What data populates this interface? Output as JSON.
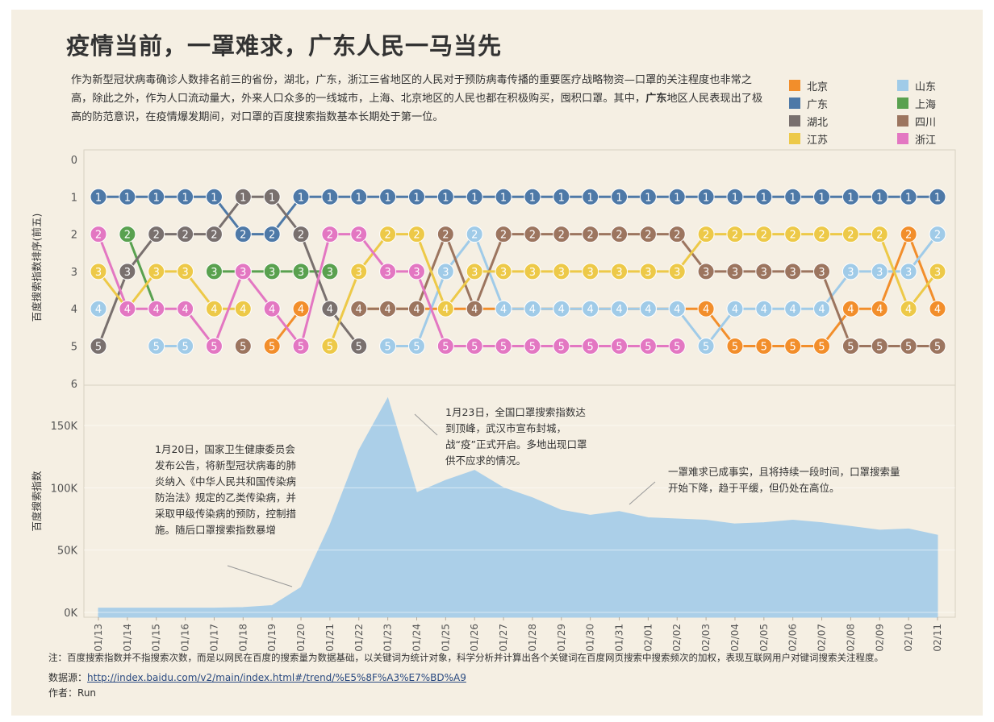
{
  "title": "疫情当前，一罩难求，广东人民一马当先",
  "intro": {
    "part1": "作为新型冠状病毒确诊人数排名前三的省份，湖北，广东，浙江三省地区的人民对于预防病毒传播的重要医疗战略物资—口罩的关注程度也非常之高，除此之外，作为人口流动量大，外来人口众多的一线城市，上海、北京地区的人民也都在积极购买，囤积口罩。其中，",
    "bold": "广东",
    "part2": "地区人民表现出了极高的防范意识，在疫情爆发期间，对口罩的百度搜索指数基本长期处于第一位。"
  },
  "legend": [
    {
      "name": "北京",
      "color": "#f28e2b"
    },
    {
      "name": "山东",
      "color": "#a0cbe8"
    },
    {
      "name": "广东",
      "color": "#4e79a7"
    },
    {
      "name": "上海",
      "color": "#59a14f"
    },
    {
      "name": "湖北",
      "color": "#79706e"
    },
    {
      "name": "四川",
      "color": "#9c755f"
    },
    {
      "name": "江苏",
      "color": "#edc948"
    },
    {
      "name": "浙江",
      "color": "#e377c2"
    }
  ],
  "chart_data": [
    {
      "type": "line",
      "subtype": "bump",
      "ylabel": "百度搜索指数排序(前五)",
      "ylim": [
        0,
        6
      ],
      "yticks": [
        "0",
        "1",
        "2",
        "3",
        "4",
        "5",
        "6"
      ],
      "x": [
        "01/13",
        "01/14",
        "01/15",
        "01/16",
        "01/17",
        "01/18",
        "01/19",
        "01/20",
        "01/21",
        "01/22",
        "01/23",
        "01/24",
        "01/25",
        "01/26",
        "01/27",
        "01/28",
        "01/29",
        "01/30",
        "01/31",
        "02/01",
        "02/02",
        "02/03",
        "02/04",
        "02/05",
        "02/06",
        "02/07",
        "02/08",
        "02/09",
        "02/10",
        "02/11"
      ],
      "series": [
        {
          "name": "北京",
          "color": "#f28e2b",
          "values": [
            null,
            null,
            null,
            null,
            5,
            null,
            5,
            4,
            null,
            4,
            4,
            4,
            4,
            4,
            4,
            4,
            4,
            4,
            4,
            4,
            4,
            4,
            5,
            5,
            5,
            5,
            4,
            4,
            2,
            4
          ]
        },
        {
          "name": "山东",
          "color": "#a0cbe8",
          "values": [
            4,
            null,
            5,
            5,
            null,
            null,
            null,
            null,
            5,
            null,
            5,
            5,
            3,
            2,
            4,
            4,
            4,
            4,
            4,
            4,
            4,
            5,
            4,
            4,
            4,
            4,
            3,
            3,
            3,
            2
          ]
        },
        {
          "name": "广东",
          "color": "#4e79a7",
          "values": [
            1,
            1,
            1,
            1,
            1,
            2,
            2,
            1,
            1,
            1,
            1,
            1,
            1,
            1,
            1,
            1,
            1,
            1,
            1,
            1,
            1,
            1,
            1,
            1,
            1,
            1,
            1,
            1,
            1,
            1
          ]
        },
        {
          "name": "上海",
          "color": "#59a14f",
          "values": [
            null,
            2,
            4,
            null,
            3,
            3,
            3,
            3,
            3,
            null,
            null,
            null,
            null,
            null,
            null,
            null,
            null,
            null,
            null,
            null,
            null,
            null,
            null,
            null,
            null,
            null,
            null,
            null,
            null,
            null
          ]
        },
        {
          "name": "湖北",
          "color": "#79706e",
          "values": [
            5,
            3,
            2,
            2,
            2,
            1,
            1,
            2,
            4,
            5,
            null,
            null,
            null,
            null,
            null,
            null,
            null,
            null,
            null,
            null,
            null,
            null,
            null,
            null,
            null,
            null,
            null,
            null,
            null,
            null
          ]
        },
        {
          "name": "四川",
          "color": "#9c755f",
          "values": [
            null,
            null,
            null,
            null,
            null,
            5,
            null,
            null,
            null,
            4,
            4,
            4,
            2,
            4,
            2,
            2,
            2,
            2,
            2,
            2,
            2,
            3,
            3,
            3,
            3,
            3,
            5,
            5,
            5,
            5
          ]
        },
        {
          "name": "江苏",
          "color": "#edc948",
          "values": [
            3,
            4,
            3,
            3,
            4,
            4,
            null,
            null,
            5,
            3,
            2,
            2,
            4,
            3,
            3,
            3,
            3,
            3,
            3,
            3,
            3,
            2,
            2,
            2,
            2,
            2,
            2,
            2,
            4,
            3
          ]
        },
        {
          "name": "浙江",
          "color": "#e377c2",
          "values": [
            2,
            4,
            4,
            4,
            5,
            3,
            4,
            5,
            2,
            2,
            3,
            3,
            5,
            5,
            5,
            5,
            5,
            5,
            5,
            5,
            5,
            null,
            null,
            null,
            null,
            null,
            null,
            null,
            null,
            null
          ]
        }
      ]
    },
    {
      "type": "area",
      "ylabel": "百度搜索指数",
      "yticks": [
        "0K",
        "50K",
        "100K",
        "150K"
      ],
      "ylim": [
        0,
        180000
      ],
      "x": [
        "01/13",
        "01/14",
        "01/15",
        "01/16",
        "01/17",
        "01/18",
        "01/19",
        "01/20",
        "01/21",
        "01/22",
        "01/23",
        "01/24",
        "01/25",
        "01/26",
        "01/27",
        "01/28",
        "01/29",
        "01/30",
        "01/31",
        "02/01",
        "02/02",
        "02/03",
        "02/04",
        "02/05",
        "02/06",
        "02/07",
        "02/08",
        "02/09",
        "02/10",
        "02/11"
      ],
      "values": [
        3500,
        3500,
        3500,
        3500,
        3500,
        4000,
        5500,
        20000,
        70000,
        130000,
        172000,
        96000,
        106000,
        114000,
        100000,
        92000,
        82000,
        78000,
        81000,
        76000,
        75000,
        74000,
        71000,
        72000,
        74000,
        72000,
        69000,
        66000,
        67000,
        62000
      ],
      "color": "#abcfe8"
    }
  ],
  "annotations": {
    "a1": "1月20日，国家卫生健康委员会发布公告，将新型冠状病毒的肺炎纳入《中华人民共和国传染病防治法》规定的乙类传染病，并采取甲级传染病的预防，控制措施。随后口罩搜索指数暴增",
    "a2": "1月23日，全国口罩搜索指数达到顶峰，武汉市宣布封城，战“疫”正式开启。多地出现口罩供不应求的情况。",
    "a3": "一罩难求已成事实，且将持续一段时间，口罩搜索量开始下降，趋于平缓，但仍处在高位。"
  },
  "note": "注：百度搜索指数并不指搜索次数，而是以网民在百度的搜索量为数据基础，以关键词为统计对象，科学分析并计算出各个关键词在百度网页搜索中搜索频次的加权，表现互联网用户对键词搜索关注程度。",
  "source": {
    "label": "数据源：",
    "url": "http://index.baidu.com/v2/main/index.html#/trend/%E5%8F%A3%E7%BD%A9"
  },
  "author": {
    "label": "作者：",
    "name": "Run"
  }
}
